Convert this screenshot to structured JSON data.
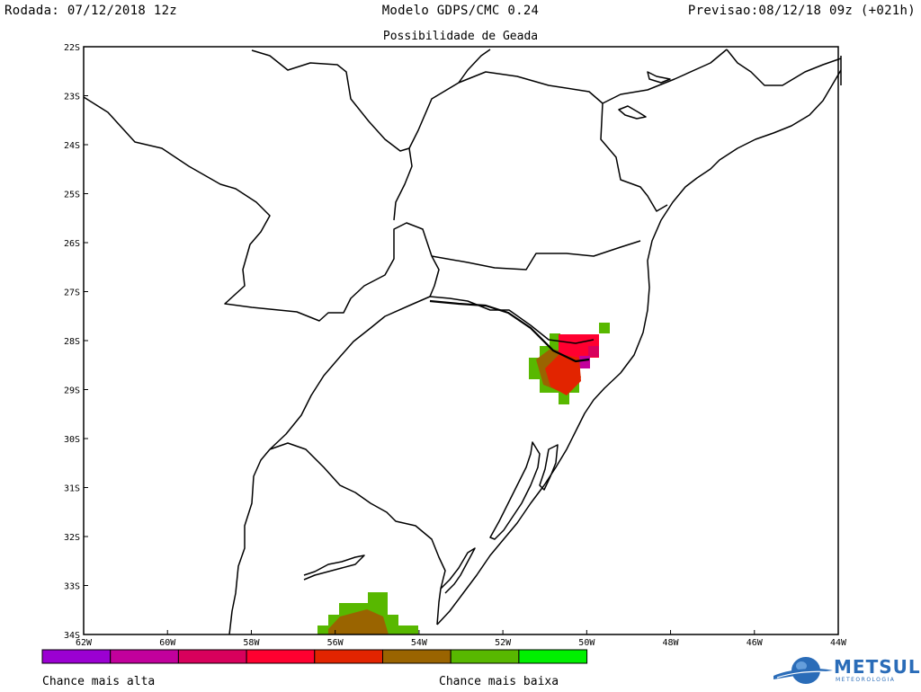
{
  "header": {
    "left": "Rodada: 07/12/2018 12z",
    "center": "Modelo GDPS/CMC 0.24",
    "right": "Previsao:08/12/18 09z (+021h)"
  },
  "subtitle": "Possibilidade de Geada",
  "axes": {
    "lat_labels": [
      "22S",
      "23S",
      "24S",
      "25S",
      "26S",
      "27S",
      "28S",
      "29S",
      "30S",
      "31S",
      "32S",
      "33S",
      "34S"
    ],
    "lon_labels": [
      "62W",
      "60W",
      "58W",
      "56W",
      "54W",
      "52W",
      "50W",
      "48W",
      "46W",
      "44W"
    ],
    "lat_range": [
      -34,
      -22
    ],
    "lon_range": [
      -62,
      -44
    ]
  },
  "legend": {
    "colors": [
      "#9b00d2",
      "#c2009c",
      "#d8005c",
      "#ff0030",
      "#e22400",
      "#9a6400",
      "#58b800",
      "#00f000"
    ],
    "left_label": "Chance mais alta",
    "right_label": "Chance mais baixa"
  },
  "logo": {
    "text": "METSUL",
    "sub": "METEOROLOGIA"
  }
}
